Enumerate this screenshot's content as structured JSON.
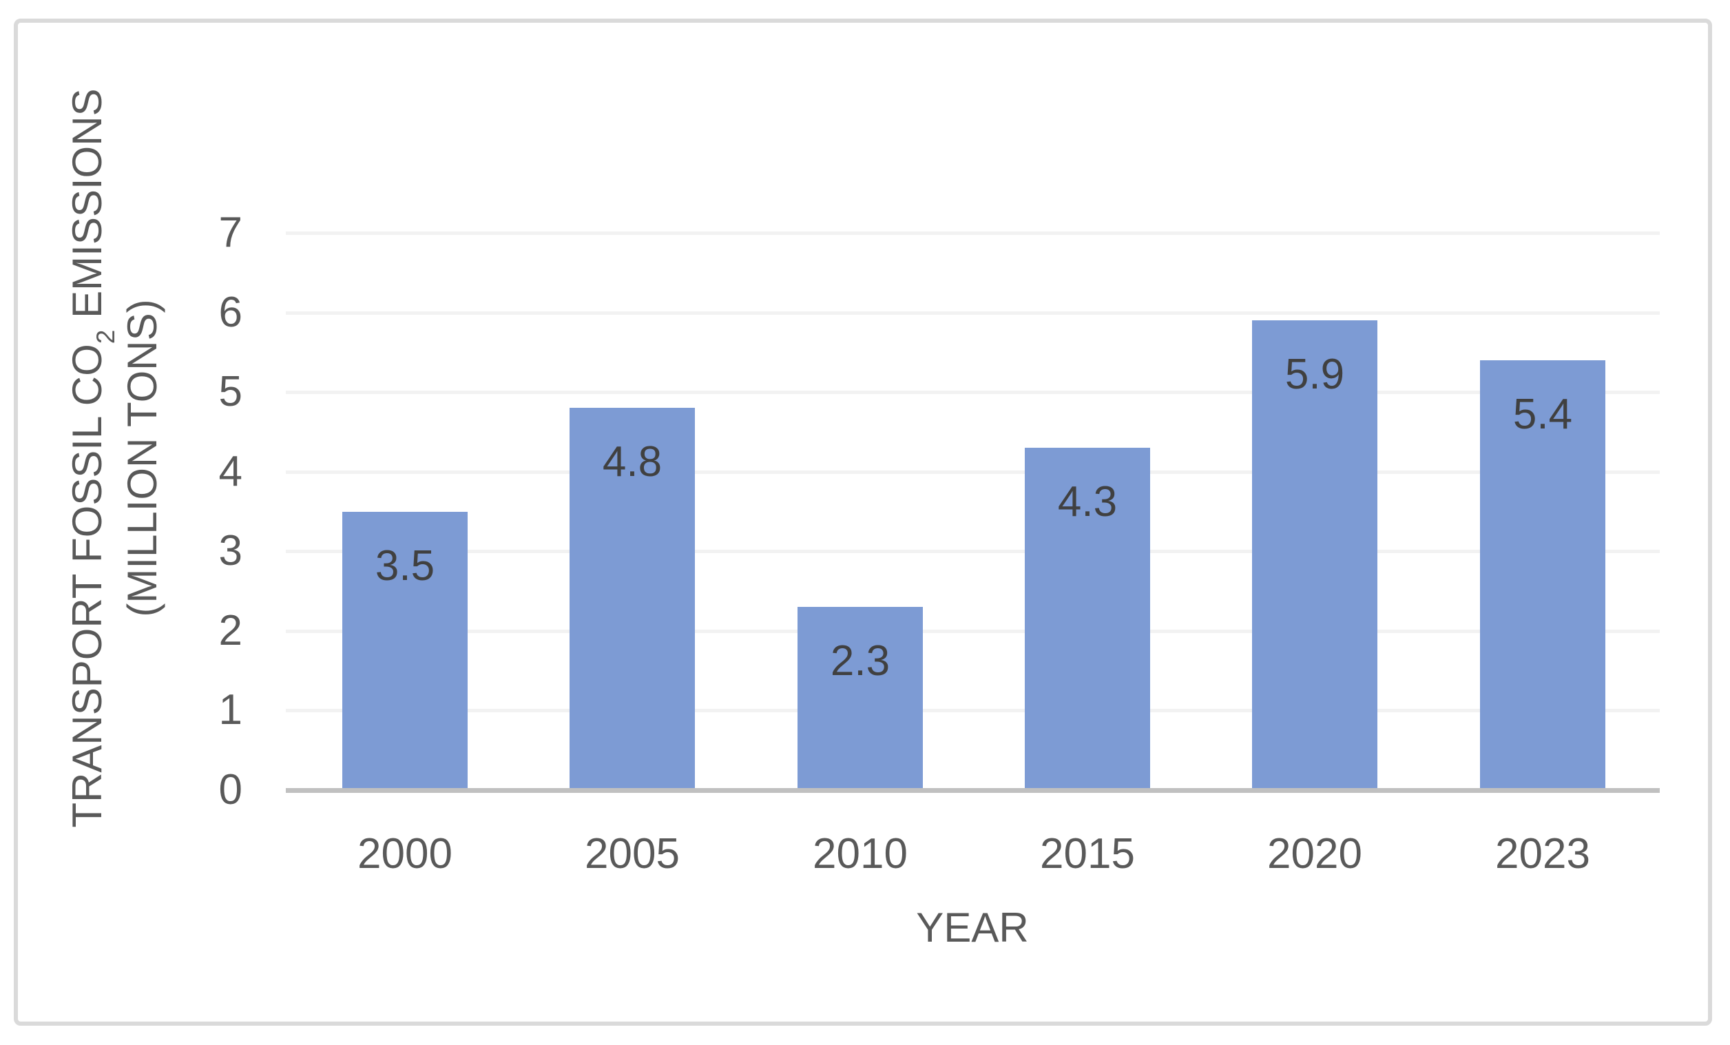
{
  "chart_data": {
    "type": "bar",
    "categories": [
      "2000",
      "2005",
      "2010",
      "2015",
      "2020",
      "2023"
    ],
    "values": [
      3.5,
      4.8,
      2.3,
      4.3,
      5.9,
      5.4
    ],
    "data_labels": [
      "3.5",
      "4.8",
      "2.3",
      "4.3",
      "5.9",
      "5.4"
    ],
    "title": "",
    "xlabel": "YEAR",
    "ylabel": "TRANSPORT FOSSIL CO2 EMISSIONS (MILLION TONS)",
    "ylabel_line1_pre": "TRANSPORT FOSSIL CO",
    "ylabel_subscript": "2",
    "ylabel_line1_post": " EMISSIONS",
    "ylabel_line2": "(MILLION TONS)",
    "ylim": [
      0,
      7
    ],
    "yticks": [
      0,
      1,
      2,
      3,
      4,
      5,
      6,
      7
    ],
    "grid": "horizontal-only",
    "legend_position": "none",
    "data_label_position": "inside-end"
  },
  "colors": {
    "bar_fill": "#7D9BD4",
    "gridline": "#F2F2F2",
    "axis_line": "#C0C0C0",
    "chart_border": "#DADADA",
    "axis_text": "#595959",
    "data_label_text": "#404040",
    "background": "#FFFFFF"
  }
}
